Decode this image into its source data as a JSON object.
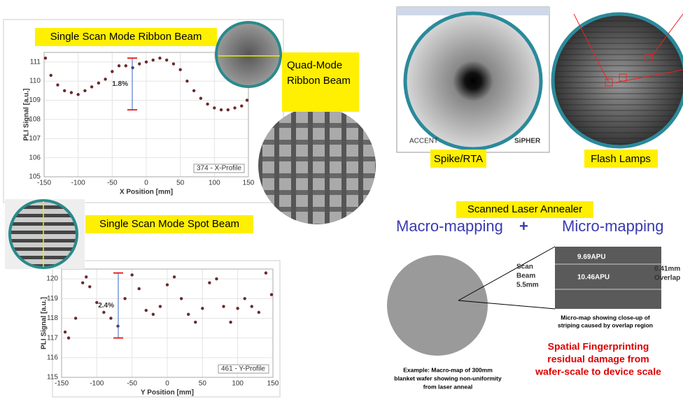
{
  "chart_data": [
    {
      "type": "scatter",
      "title": "Single Scan Mode Ribbon Beam",
      "x_label": "X Position [mm]",
      "y_label": "PLI Signal [a.u.]",
      "legend": "374 - X-Profile",
      "annotation": "1.8%",
      "color": "#6b2a2a",
      "grid": true,
      "x": [
        -148,
        -140,
        -130,
        -120,
        -110,
        -100,
        -90,
        -80,
        -70,
        -60,
        -50,
        -40,
        -30,
        -20,
        -10,
        0,
        10,
        20,
        30,
        40,
        50,
        60,
        70,
        80,
        90,
        100,
        110,
        120,
        130,
        140,
        148
      ],
      "values": [
        111.2,
        110.3,
        109.8,
        109.5,
        109.4,
        109.3,
        109.5,
        109.7,
        109.9,
        110.1,
        110.5,
        110.8,
        110.8,
        110.7,
        110.9,
        111.0,
        111.1,
        111.2,
        111.1,
        110.9,
        110.6,
        110.0,
        109.5,
        109.1,
        108.8,
        108.6,
        108.5,
        108.5,
        108.6,
        108.7,
        109.0
      ],
      "xlim": [
        -150,
        150
      ],
      "xticks": [
        -150,
        -100,
        -50,
        0,
        50,
        100,
        150
      ],
      "ylim": [
        105,
        111.5
      ],
      "yticks": [
        105,
        106,
        107,
        108,
        109,
        110,
        111
      ]
    },
    {
      "type": "scatter",
      "title": "Single Scan Mode Spot Beam",
      "x_label": "Y Position [mm]",
      "y_label": "PLI Signal [a.u.]",
      "legend": "461 - Y-Profile",
      "annotation": "2.4%",
      "color": "#6b2a2a",
      "grid": true,
      "x": [
        -145,
        -140,
        -130,
        -120,
        -115,
        -110,
        -100,
        -90,
        -80,
        -70,
        -60,
        -50,
        -40,
        -30,
        -20,
        -10,
        0,
        10,
        20,
        30,
        40,
        50,
        60,
        70,
        80,
        90,
        100,
        110,
        120,
        130,
        140,
        148
      ],
      "values": [
        117.3,
        117.0,
        118.0,
        119.8,
        120.1,
        119.6,
        118.8,
        118.3,
        118.0,
        117.6,
        119.0,
        120.2,
        119.5,
        118.4,
        118.2,
        118.6,
        119.7,
        120.1,
        119.0,
        118.2,
        117.8,
        118.5,
        119.8,
        120.0,
        118.6,
        117.8,
        118.5,
        119.0,
        118.6,
        118.3,
        120.3,
        119.2
      ],
      "xlim": [
        -150,
        150
      ],
      "xticks": [
        -150,
        -100,
        -50,
        0,
        50,
        100,
        150
      ],
      "ylim": [
        115,
        120.5
      ],
      "yticks": [
        115,
        116,
        117,
        118,
        119,
        120
      ]
    }
  ],
  "labels": {
    "quad_mode": [
      "Quad-Mode",
      "Ribbon Beam"
    ],
    "spike": "Spike/RTA",
    "flash": "Flash Lamps",
    "accent": "ACCENT",
    "sipher": "SiPHER",
    "laser": "Scanned Laser Annealer",
    "macro": "Macro-mapping",
    "plus": "+",
    "micro": "Micro-mapping",
    "scan_beam": [
      "Scan",
      "Beam",
      "5.5mm"
    ],
    "apu_top": "9.69APU",
    "apu_mid": "10.46APU",
    "overlap": [
      "0.41mm",
      "Overlap"
    ],
    "micro_caption": [
      "Micro-map showing close-up of",
      "striping caused by overlap region"
    ],
    "fingerprint": [
      "Spatial Fingerprinting",
      "residual damage from",
      "wafer-scale to device scale"
    ],
    "macro_caption": [
      "Example: Macro-map of 300mm",
      "blanket wafer showing non-uniformity",
      "from laser anneal"
    ]
  }
}
